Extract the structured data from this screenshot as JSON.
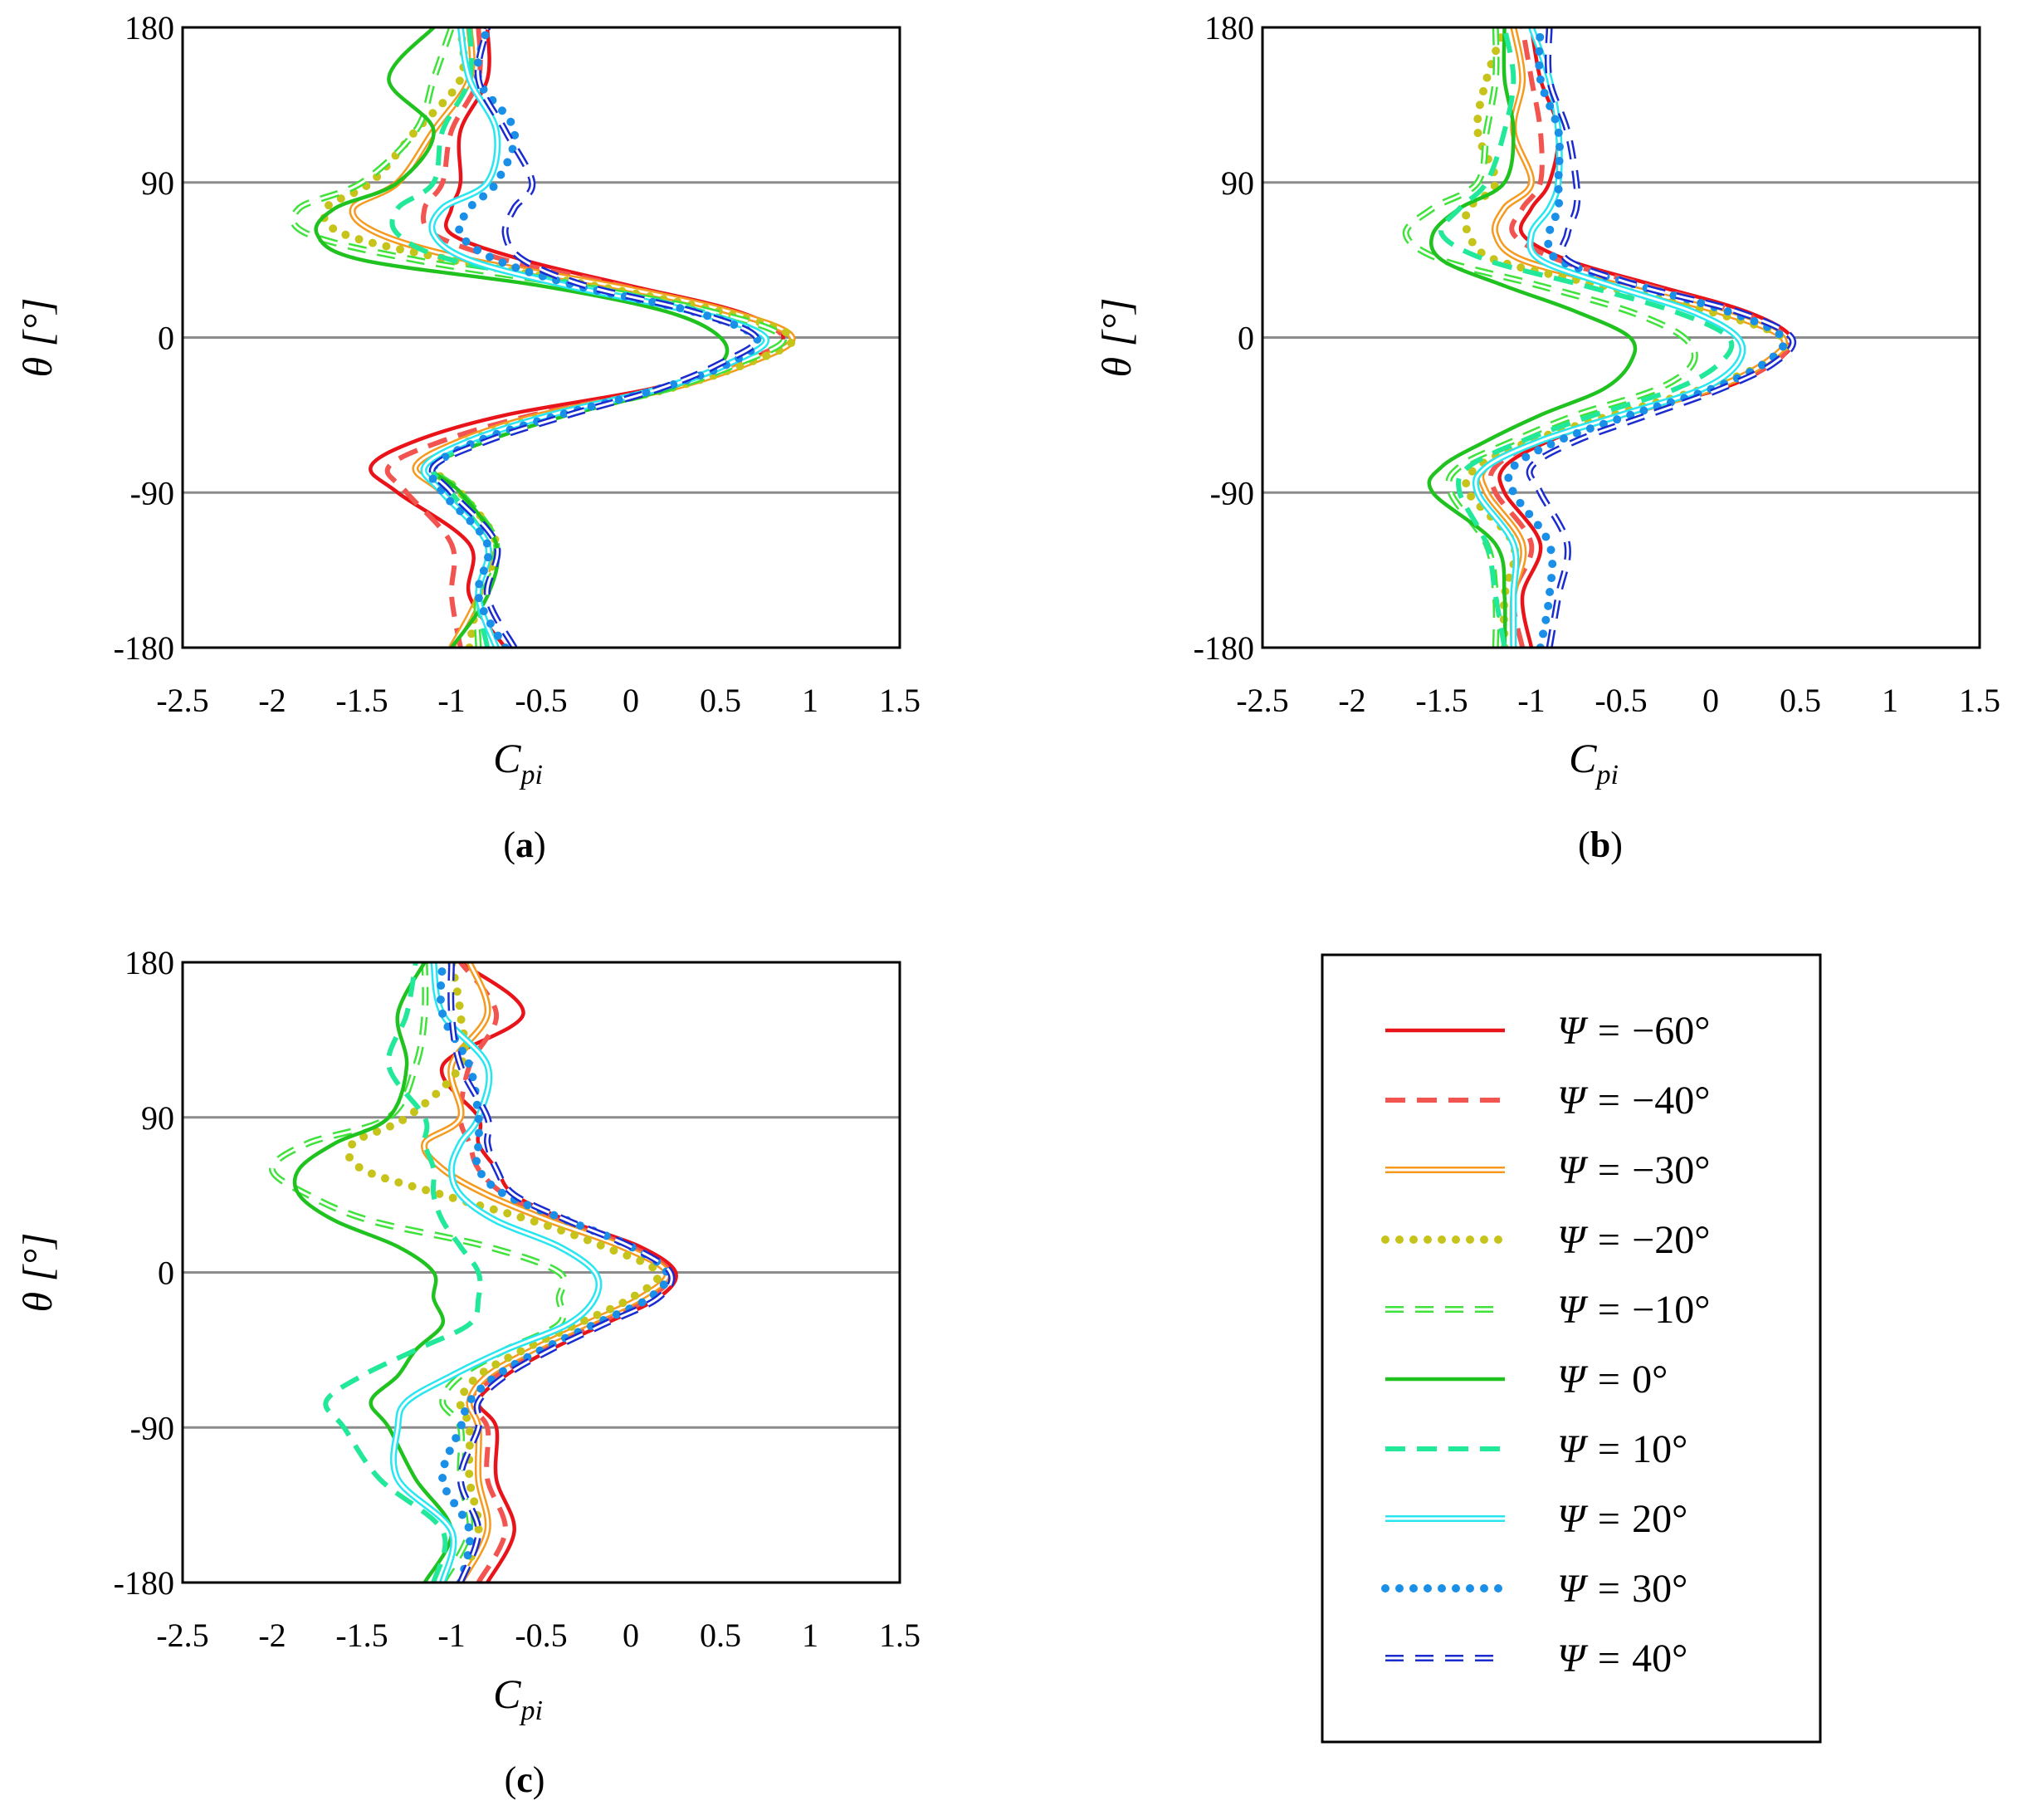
{
  "chart_data": {
    "type": "line",
    "orientation": "x-value, y-angle",
    "xlim": [
      -2.5,
      1.5
    ],
    "ylim": [
      -180,
      180
    ],
    "xticks": [
      "-2.5",
      "-2",
      "-1.5",
      "-1",
      "-0.5",
      "0",
      "0.5",
      "1",
      "1.5"
    ],
    "yticks": [
      "180",
      "90",
      "0",
      "-90",
      "-180"
    ],
    "xlabel_main": "C",
    "xlabel_sub": "pi",
    "ylabel": "θ [°]",
    "theta": [
      -180,
      -150,
      -120,
      -90,
      -75,
      -60,
      -45,
      -30,
      -15,
      0,
      15,
      30,
      45,
      60,
      75,
      90,
      120,
      150,
      180
    ],
    "series": [
      {
        "name": "Ψ = −60°",
        "color": "#e8141a",
        "style": "solid"
      },
      {
        "name": "Ψ = −40°",
        "color": "#f2544f",
        "style": "dashed"
      },
      {
        "name": "Ψ = −30°",
        "color": "#f59a1f",
        "style": "double"
      },
      {
        "name": "Ψ = −20°",
        "color": "#c6c41a",
        "style": "dotted"
      },
      {
        "name": "Ψ = −10°",
        "color": "#3ee23a",
        "style": "double-dashed"
      },
      {
        "name": "Ψ = 0°",
        "color": "#1fc21f",
        "style": "solid"
      },
      {
        "name": "Ψ = 10°",
        "color": "#22e89a",
        "style": "dashed"
      },
      {
        "name": "Ψ = 20°",
        "color": "#28e6f0",
        "style": "double"
      },
      {
        "name": "Ψ = 30°",
        "color": "#1a8fe8",
        "style": "dotted"
      },
      {
        "name": "Ψ = 40°",
        "color": "#1a2ccf",
        "style": "double-dashed"
      }
    ],
    "panels": [
      {
        "label": "a",
        "values": [
          [
            -0.7,
            -0.9,
            -0.9,
            -1.3,
            -1.45,
            -1.2,
            -0.7,
            0.1,
            0.6,
            0.85,
            0.6,
            0.0,
            -0.6,
            -1.0,
            -1.0,
            -0.95,
            -0.95,
            -0.8,
            -0.8
          ],
          [
            -0.95,
            -1.0,
            -1.0,
            -1.25,
            -1.35,
            -1.05,
            -0.55,
            0.15,
            0.6,
            0.85,
            0.55,
            -0.05,
            -0.7,
            -1.1,
            -1.15,
            -1.05,
            -1.0,
            -0.85,
            -0.85
          ],
          [
            -1.0,
            -0.85,
            -0.8,
            -1.05,
            -1.2,
            -0.95,
            -0.5,
            0.2,
            0.65,
            0.9,
            0.55,
            -0.1,
            -0.9,
            -1.4,
            -1.55,
            -1.3,
            -1.1,
            -0.9,
            -0.9
          ],
          [
            -0.9,
            -0.85,
            -0.75,
            -0.95,
            -1.1,
            -0.9,
            -0.45,
            0.2,
            0.65,
            0.9,
            0.5,
            -0.2,
            -1.0,
            -1.6,
            -1.7,
            -1.45,
            -1.2,
            -0.95,
            -0.95
          ],
          [
            -0.85,
            -0.85,
            -0.75,
            -0.95,
            -1.1,
            -0.85,
            -0.4,
            0.2,
            0.6,
            0.85,
            0.45,
            -0.3,
            -1.2,
            -1.8,
            -1.85,
            -1.5,
            -1.2,
            -1.1,
            -1.0
          ],
          [
            -1.0,
            -0.8,
            -0.75,
            -0.95,
            -1.1,
            -0.8,
            -0.35,
            0.2,
            0.5,
            0.5,
            0.2,
            -0.5,
            -1.5,
            -1.75,
            -1.65,
            -1.3,
            -1.1,
            -1.35,
            -1.1
          ],
          [
            -0.8,
            -0.85,
            -0.8,
            -1.0,
            -1.1,
            -0.85,
            -0.4,
            0.15,
            0.55,
            0.75,
            0.4,
            -0.25,
            -1.0,
            -1.3,
            -1.3,
            -1.1,
            -1.05,
            -0.9,
            -0.9
          ],
          [
            -0.75,
            -0.85,
            -0.8,
            -1.05,
            -1.15,
            -0.9,
            -0.45,
            0.15,
            0.55,
            0.75,
            0.35,
            -0.35,
            -0.9,
            -1.1,
            -1.05,
            -0.8,
            -0.75,
            -0.9,
            -0.95
          ],
          [
            -0.7,
            -0.85,
            -0.8,
            -1.05,
            -1.1,
            -0.85,
            -0.4,
            0.15,
            0.55,
            0.7,
            0.35,
            -0.3,
            -0.75,
            -0.95,
            -0.9,
            -0.75,
            -0.65,
            -0.85,
            -0.8
          ],
          [
            -0.65,
            -0.8,
            -0.75,
            -1.0,
            -1.1,
            -0.8,
            -0.35,
            0.15,
            0.5,
            0.7,
            0.35,
            -0.25,
            -0.6,
            -0.7,
            -0.65,
            -0.55,
            -0.7,
            -0.85,
            -0.8
          ]
        ]
      },
      {
        "label": "b",
        "values": [
          [
            -1.0,
            -1.05,
            -0.95,
            -1.15,
            -1.15,
            -0.9,
            -0.5,
            0.05,
            0.35,
            0.45,
            0.2,
            -0.3,
            -0.8,
            -1.05,
            -1.0,
            -0.9,
            -0.85,
            -0.95,
            -1.0
          ],
          [
            -1.05,
            -1.1,
            -1.0,
            -1.2,
            -1.2,
            -0.95,
            -0.5,
            0.0,
            0.35,
            0.42,
            0.15,
            -0.35,
            -0.85,
            -1.1,
            -1.05,
            -0.95,
            -0.95,
            -1.0,
            -1.05
          ],
          [
            -1.1,
            -1.1,
            -1.05,
            -1.25,
            -1.25,
            -0.95,
            -0.5,
            0.0,
            0.3,
            0.4,
            0.05,
            -0.5,
            -1.05,
            -1.2,
            -1.15,
            -1.0,
            -1.1,
            -1.05,
            -1.1
          ],
          [
            -1.15,
            -1.15,
            -1.1,
            -1.35,
            -1.3,
            -1.0,
            -0.55,
            -0.05,
            0.3,
            0.4,
            0.0,
            -0.6,
            -1.2,
            -1.35,
            -1.35,
            -1.2,
            -1.3,
            -1.25,
            -1.15
          ],
          [
            -1.2,
            -1.2,
            -1.25,
            -1.45,
            -1.4,
            -1.1,
            -0.75,
            -0.3,
            -0.1,
            -0.15,
            -0.45,
            -0.95,
            -1.5,
            -1.7,
            -1.55,
            -1.3,
            -1.25,
            -1.2,
            -1.2
          ],
          [
            -1.15,
            -1.15,
            -1.2,
            -1.55,
            -1.5,
            -1.25,
            -0.95,
            -0.6,
            -0.45,
            -0.45,
            -0.75,
            -1.15,
            -1.5,
            -1.55,
            -1.4,
            -1.15,
            -1.1,
            -1.15,
            -1.15
          ],
          [
            -1.15,
            -1.2,
            -1.25,
            -1.4,
            -1.35,
            -1.05,
            -0.65,
            -0.2,
            0.05,
            0.1,
            -0.2,
            -0.7,
            -1.25,
            -1.5,
            -1.4,
            -1.25,
            -1.15,
            -1.1,
            -1.15
          ],
          [
            -1.1,
            -1.1,
            -1.1,
            -1.3,
            -1.25,
            -0.95,
            -0.5,
            -0.05,
            0.15,
            0.15,
            -0.1,
            -0.55,
            -0.95,
            -1.0,
            -0.9,
            -0.85,
            -0.85,
            -0.9,
            -1.0
          ],
          [
            -0.95,
            -0.9,
            -0.9,
            -1.1,
            -1.1,
            -0.85,
            -0.45,
            0.0,
            0.3,
            0.4,
            0.1,
            -0.4,
            -0.85,
            -0.9,
            -0.85,
            -0.85,
            -0.85,
            -0.95,
            -0.95
          ],
          [
            -0.9,
            -0.85,
            -0.8,
            -0.95,
            -1.0,
            -0.75,
            -0.35,
            0.05,
            0.35,
            0.45,
            0.15,
            -0.4,
            -0.8,
            -0.8,
            -0.75,
            -0.75,
            -0.8,
            -0.9,
            -0.9
          ]
        ]
      },
      {
        "label": "c",
        "values": [
          [
            -0.8,
            -0.65,
            -0.75,
            -0.75,
            -0.85,
            -0.7,
            -0.45,
            -0.15,
            0.15,
            0.25,
            0.05,
            -0.35,
            -0.65,
            -0.75,
            -0.85,
            -0.85,
            -1.05,
            -0.6,
            -0.95
          ],
          [
            -0.85,
            -0.7,
            -0.8,
            -0.8,
            -0.9,
            -0.75,
            -0.5,
            -0.2,
            0.1,
            0.22,
            0.0,
            -0.4,
            -0.7,
            -0.85,
            -0.9,
            -0.95,
            -0.9,
            -0.75,
            -0.95
          ],
          [
            -0.95,
            -0.8,
            -0.85,
            -0.85,
            -0.9,
            -0.8,
            -0.55,
            -0.25,
            0.05,
            0.2,
            -0.05,
            -0.45,
            -0.8,
            -1.05,
            -1.15,
            -0.95,
            -1.0,
            -0.8,
            -0.9
          ],
          [
            -0.95,
            -0.85,
            -0.9,
            -0.9,
            -0.95,
            -0.85,
            -0.6,
            -0.3,
            0.0,
            0.15,
            -0.15,
            -0.55,
            -1.05,
            -1.5,
            -1.55,
            -1.25,
            -0.95,
            -0.95,
            -1.0
          ],
          [
            -1.05,
            -0.9,
            -0.95,
            -0.95,
            -1.05,
            -0.95,
            -0.7,
            -0.4,
            -0.4,
            -0.4,
            -0.8,
            -1.45,
            -1.8,
            -2.0,
            -1.8,
            -1.35,
            -1.2,
            -1.15,
            -1.15
          ],
          [
            -1.15,
            -1.0,
            -1.2,
            -1.35,
            -1.45,
            -1.3,
            -1.2,
            -1.05,
            -1.1,
            -1.1,
            -1.3,
            -1.65,
            -1.85,
            -1.85,
            -1.65,
            -1.35,
            -1.25,
            -1.3,
            -1.15
          ],
          [
            -1.1,
            -1.05,
            -1.4,
            -1.6,
            -1.7,
            -1.5,
            -1.2,
            -0.9,
            -0.85,
            -0.85,
            -0.95,
            -1.05,
            -1.1,
            -1.1,
            -1.15,
            -1.15,
            -1.35,
            -1.25,
            -1.2
          ],
          [
            -1.05,
            -1.0,
            -1.3,
            -1.3,
            -1.25,
            -1.0,
            -0.7,
            -0.35,
            -0.2,
            -0.2,
            -0.4,
            -0.75,
            -0.95,
            -1.0,
            -0.95,
            -0.85,
            -0.8,
            -1.05,
            -1.1
          ],
          [
            -0.95,
            -0.9,
            -1.05,
            -0.95,
            -0.9,
            -0.75,
            -0.5,
            -0.2,
            0.1,
            0.2,
            0.0,
            -0.35,
            -0.7,
            -0.85,
            -0.85,
            -0.85,
            -0.9,
            -1.05,
            -1.05
          ],
          [
            -0.95,
            -0.85,
            -0.95,
            -0.85,
            -0.85,
            -0.7,
            -0.45,
            -0.15,
            0.15,
            0.22,
            0.0,
            -0.35,
            -0.65,
            -0.75,
            -0.8,
            -0.8,
            -0.95,
            -1.0,
            -1.0
          ]
        ]
      }
    ]
  },
  "legend": {
    "entries": [
      {
        "prefix": "Ψ = ",
        "value": "−60°"
      },
      {
        "prefix": "Ψ = ",
        "value": "−40°"
      },
      {
        "prefix": "Ψ = ",
        "value": "−30°"
      },
      {
        "prefix": "Ψ = ",
        "value": "−20°"
      },
      {
        "prefix": "Ψ = ",
        "value": "−10°"
      },
      {
        "prefix": "Ψ = ",
        "value": "0°"
      },
      {
        "prefix": "Ψ = ",
        "value": "10°"
      },
      {
        "prefix": "Ψ = ",
        "value": "20°"
      },
      {
        "prefix": "Ψ = ",
        "value": "30°"
      },
      {
        "prefix": "Ψ = ",
        "value": "40°"
      }
    ]
  },
  "captions": {
    "a": {
      "open": "(",
      "letter": "a",
      "close": ")"
    },
    "b": {
      "open": "(",
      "letter": "b",
      "close": ")"
    },
    "c": {
      "open": "(",
      "letter": "c",
      "close": ")"
    }
  }
}
